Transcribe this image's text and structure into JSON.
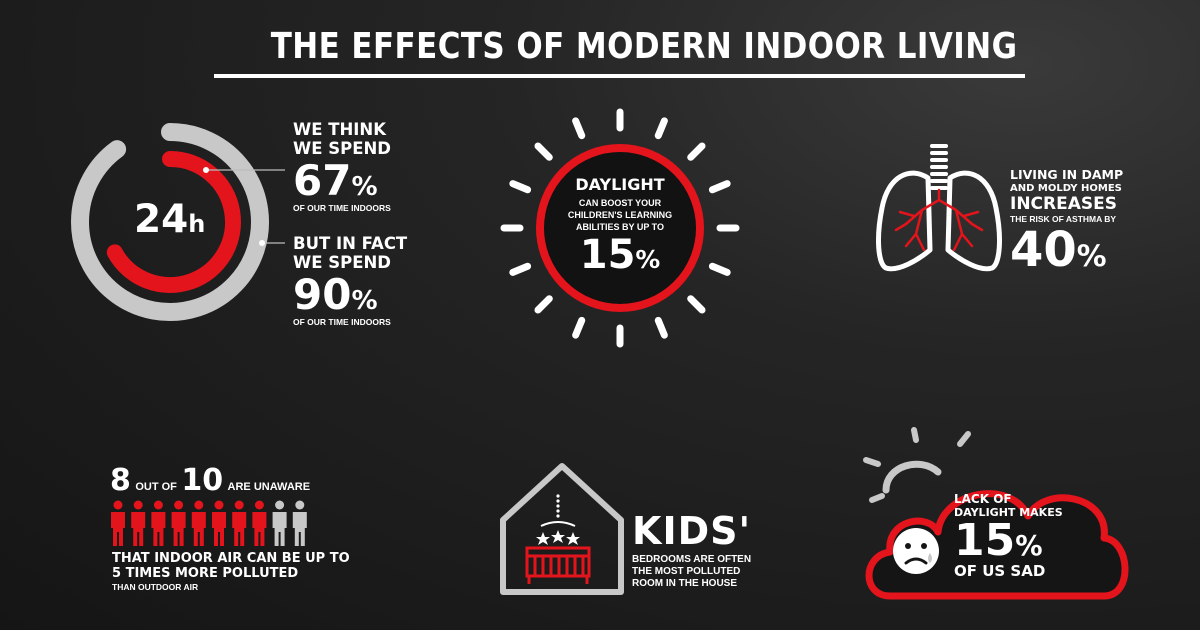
{
  "title": "THE EFFECTS OF MODERN INDOOR LIVING",
  "colors": {
    "accent": "#e3141b",
    "gray": "#c8c8c8",
    "background": "#1e1e1e",
    "text": "#ffffff"
  },
  "clock": {
    "center_label": "24",
    "center_unit": "h",
    "think_line1": "WE THINK",
    "think_line2": "WE SPEND",
    "think_value": "67",
    "think_pct": "%",
    "think_caption": "OF OUR TIME INDOORS",
    "fact_line1": "BUT IN FACT",
    "fact_line2": "WE SPEND",
    "fact_value": "90",
    "fact_pct": "%",
    "fact_caption": "OF OUR TIME INDOORS",
    "think_fraction": 0.67,
    "fact_fraction": 0.9
  },
  "daylight": {
    "heading": "DAYLIGHT",
    "line1": "CAN BOOST YOUR",
    "line2": "CHILDREN'S LEARNING",
    "line3": "ABILITIES BY UP TO",
    "value": "15",
    "pct": "%",
    "icon": "sun-icon"
  },
  "asthma": {
    "line1": "LIVING IN DAMP",
    "line2": "AND MOLDY HOMES",
    "line3": "INCREASES",
    "line4": "THE RISK OF ASTHMA BY",
    "value": "40",
    "pct": "%",
    "icon": "lungs-icon"
  },
  "air": {
    "count": "8",
    "out_of": "OUT OF",
    "total": "10",
    "suffix": "ARE UNAWARE",
    "line1": "THAT INDOOR AIR CAN BE UP TO",
    "line2": "5 TIMES MORE POLLUTED",
    "line3": "THAN OUTDOOR AIR",
    "people_highlighted": 8,
    "people_total": 10,
    "icon": "person-icon"
  },
  "kids": {
    "heading": "KIDS'",
    "line1": "BEDROOMS ARE OFTEN",
    "line2": "THE MOST POLLUTED",
    "line3": "ROOM IN THE HOUSE",
    "icon": "crib-house-icon"
  },
  "sad": {
    "line1": "LACK OF",
    "line2": "DAYLIGHT MAKES",
    "value": "15",
    "pct": "%",
    "line3": "OF US SAD",
    "icon": "sad-face-icon"
  }
}
